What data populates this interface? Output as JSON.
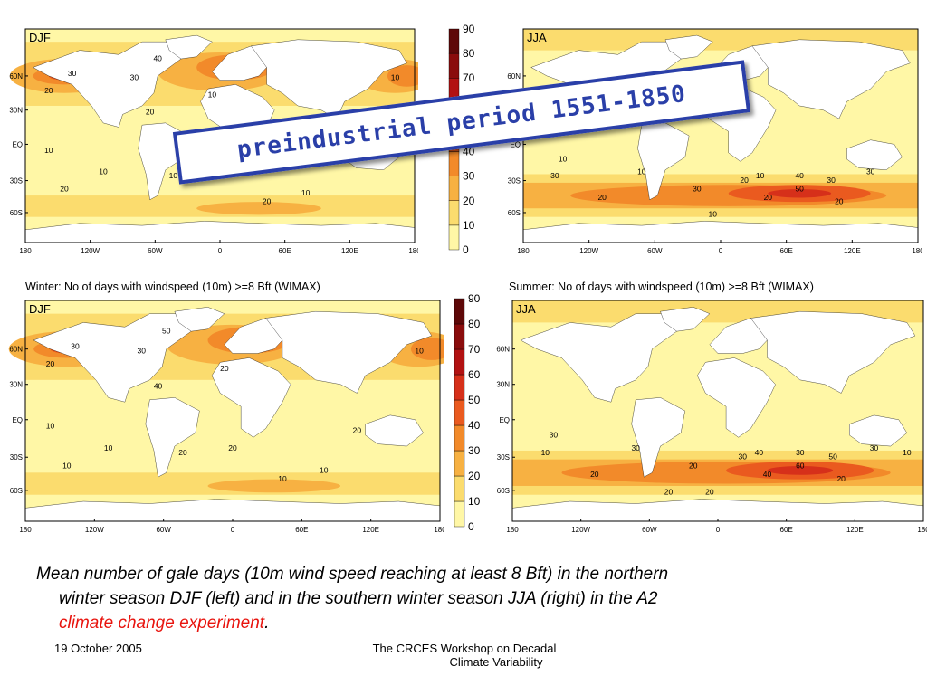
{
  "maps": [
    {
      "id": "djf-preindustrial",
      "season": "DJF"
    },
    {
      "id": "jja-preindustrial",
      "season": "JJA"
    },
    {
      "id": "djf-a2",
      "season": "DJF"
    },
    {
      "id": "jja-a2",
      "season": "JJA"
    }
  ],
  "lat_labels": [
    "60N",
    "30N",
    "EQ",
    "30S",
    "60S"
  ],
  "lon_labels": [
    "180",
    "120W",
    "60W",
    "0",
    "60E",
    "120E",
    "180"
  ],
  "titles": {
    "winter": "Winter: No of days with windspeed (10m) >=8 Bft (WIMAX)",
    "summer": "Summer: No of days with windspeed (10m) >=8 Bft (WIMAX)"
  },
  "colorbar": {
    "ticks": [
      "90",
      "80",
      "70",
      "60",
      "50",
      "40",
      "30",
      "20",
      "10",
      "0"
    ],
    "colors": [
      "#fff7a6",
      "#fbdc6e",
      "#f7b142",
      "#f28a2a",
      "#ea5a1f",
      "#d6301a",
      "#b21212",
      "#8a0c0c",
      "#5e0808"
    ]
  },
  "banner": "preindustrial period 1551-1850",
  "caption": {
    "line1": "Mean number of gale days (10m wind speed reaching at least 8 Bft) in the northern",
    "line2": "winter season DJF (left) and in the southern winter season JJA (right) in the A2",
    "line3_red": "climate change experiment",
    "line3_end": "."
  },
  "footer": {
    "date": "19 October 2005",
    "workshop_line1": "The CRCES Workshop on Decadal",
    "workshop_line2": "Climate Variability"
  },
  "contour_labels": {
    "djf-preindustrial": [
      "10",
      "20",
      "30",
      "20",
      "40",
      "30",
      "10",
      "20",
      "10",
      "10",
      "20",
      "20",
      "10",
      "10",
      "10"
    ],
    "jja-preindustrial": [
      "10",
      "20",
      "30",
      "10",
      "30",
      "20",
      "10",
      "40",
      "50",
      "30",
      "20",
      "30",
      "20",
      "10"
    ],
    "djf-a2": [
      "10",
      "20",
      "30",
      "40",
      "50",
      "30",
      "20",
      "10",
      "10",
      "20",
      "20",
      "10",
      "10",
      "20",
      "10",
      "10"
    ],
    "jja-a2": [
      "30",
      "20",
      "10",
      "30",
      "20",
      "30",
      "40",
      "30",
      "60",
      "50",
      "40",
      "30",
      "20",
      "20",
      "20",
      "10"
    ]
  }
}
